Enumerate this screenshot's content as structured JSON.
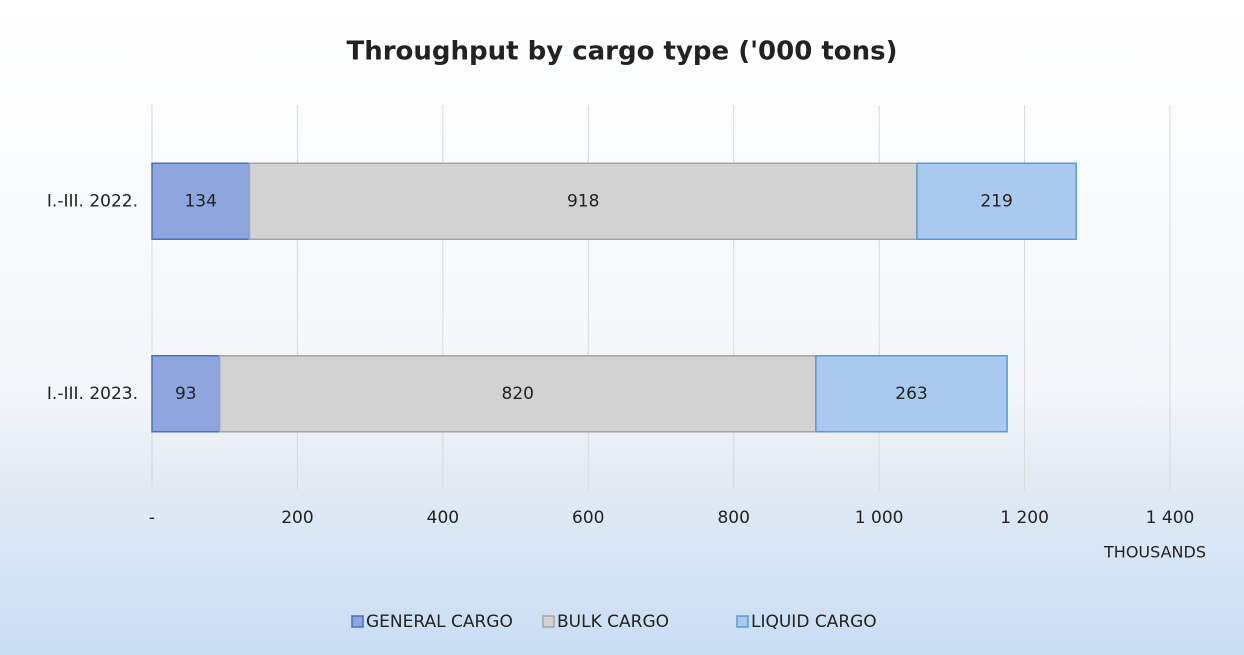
{
  "chart_data": {
    "type": "stacked-bar-horizontal",
    "title": "Throughput by cargo type ('000 tons)",
    "categories": [
      "I.-III. 2022.",
      "I.-III. 2023."
    ],
    "series": [
      {
        "name": "GENERAL CARGO",
        "color": "#8fa5dd",
        "values": [
          134,
          93
        ]
      },
      {
        "name": "BULK CARGO",
        "color": "#d2d2d2",
        "values": [
          918,
          820
        ]
      },
      {
        "name": "LIQUID CARGO",
        "color": "#a9c9ee",
        "values": [
          219,
          263
        ]
      }
    ],
    "xlim": [
      0,
      1400
    ],
    "xticks": [
      {
        "value": 0,
        "label": "-"
      },
      200,
      400,
      600,
      800,
      {
        "value": 1000,
        "label": "1 000"
      },
      {
        "value": 1200,
        "label": "1 200"
      },
      {
        "value": 1400,
        "label": "1 400"
      }
    ],
    "x_label": "THOUSANDS",
    "grid": true,
    "legend": "bottom"
  }
}
